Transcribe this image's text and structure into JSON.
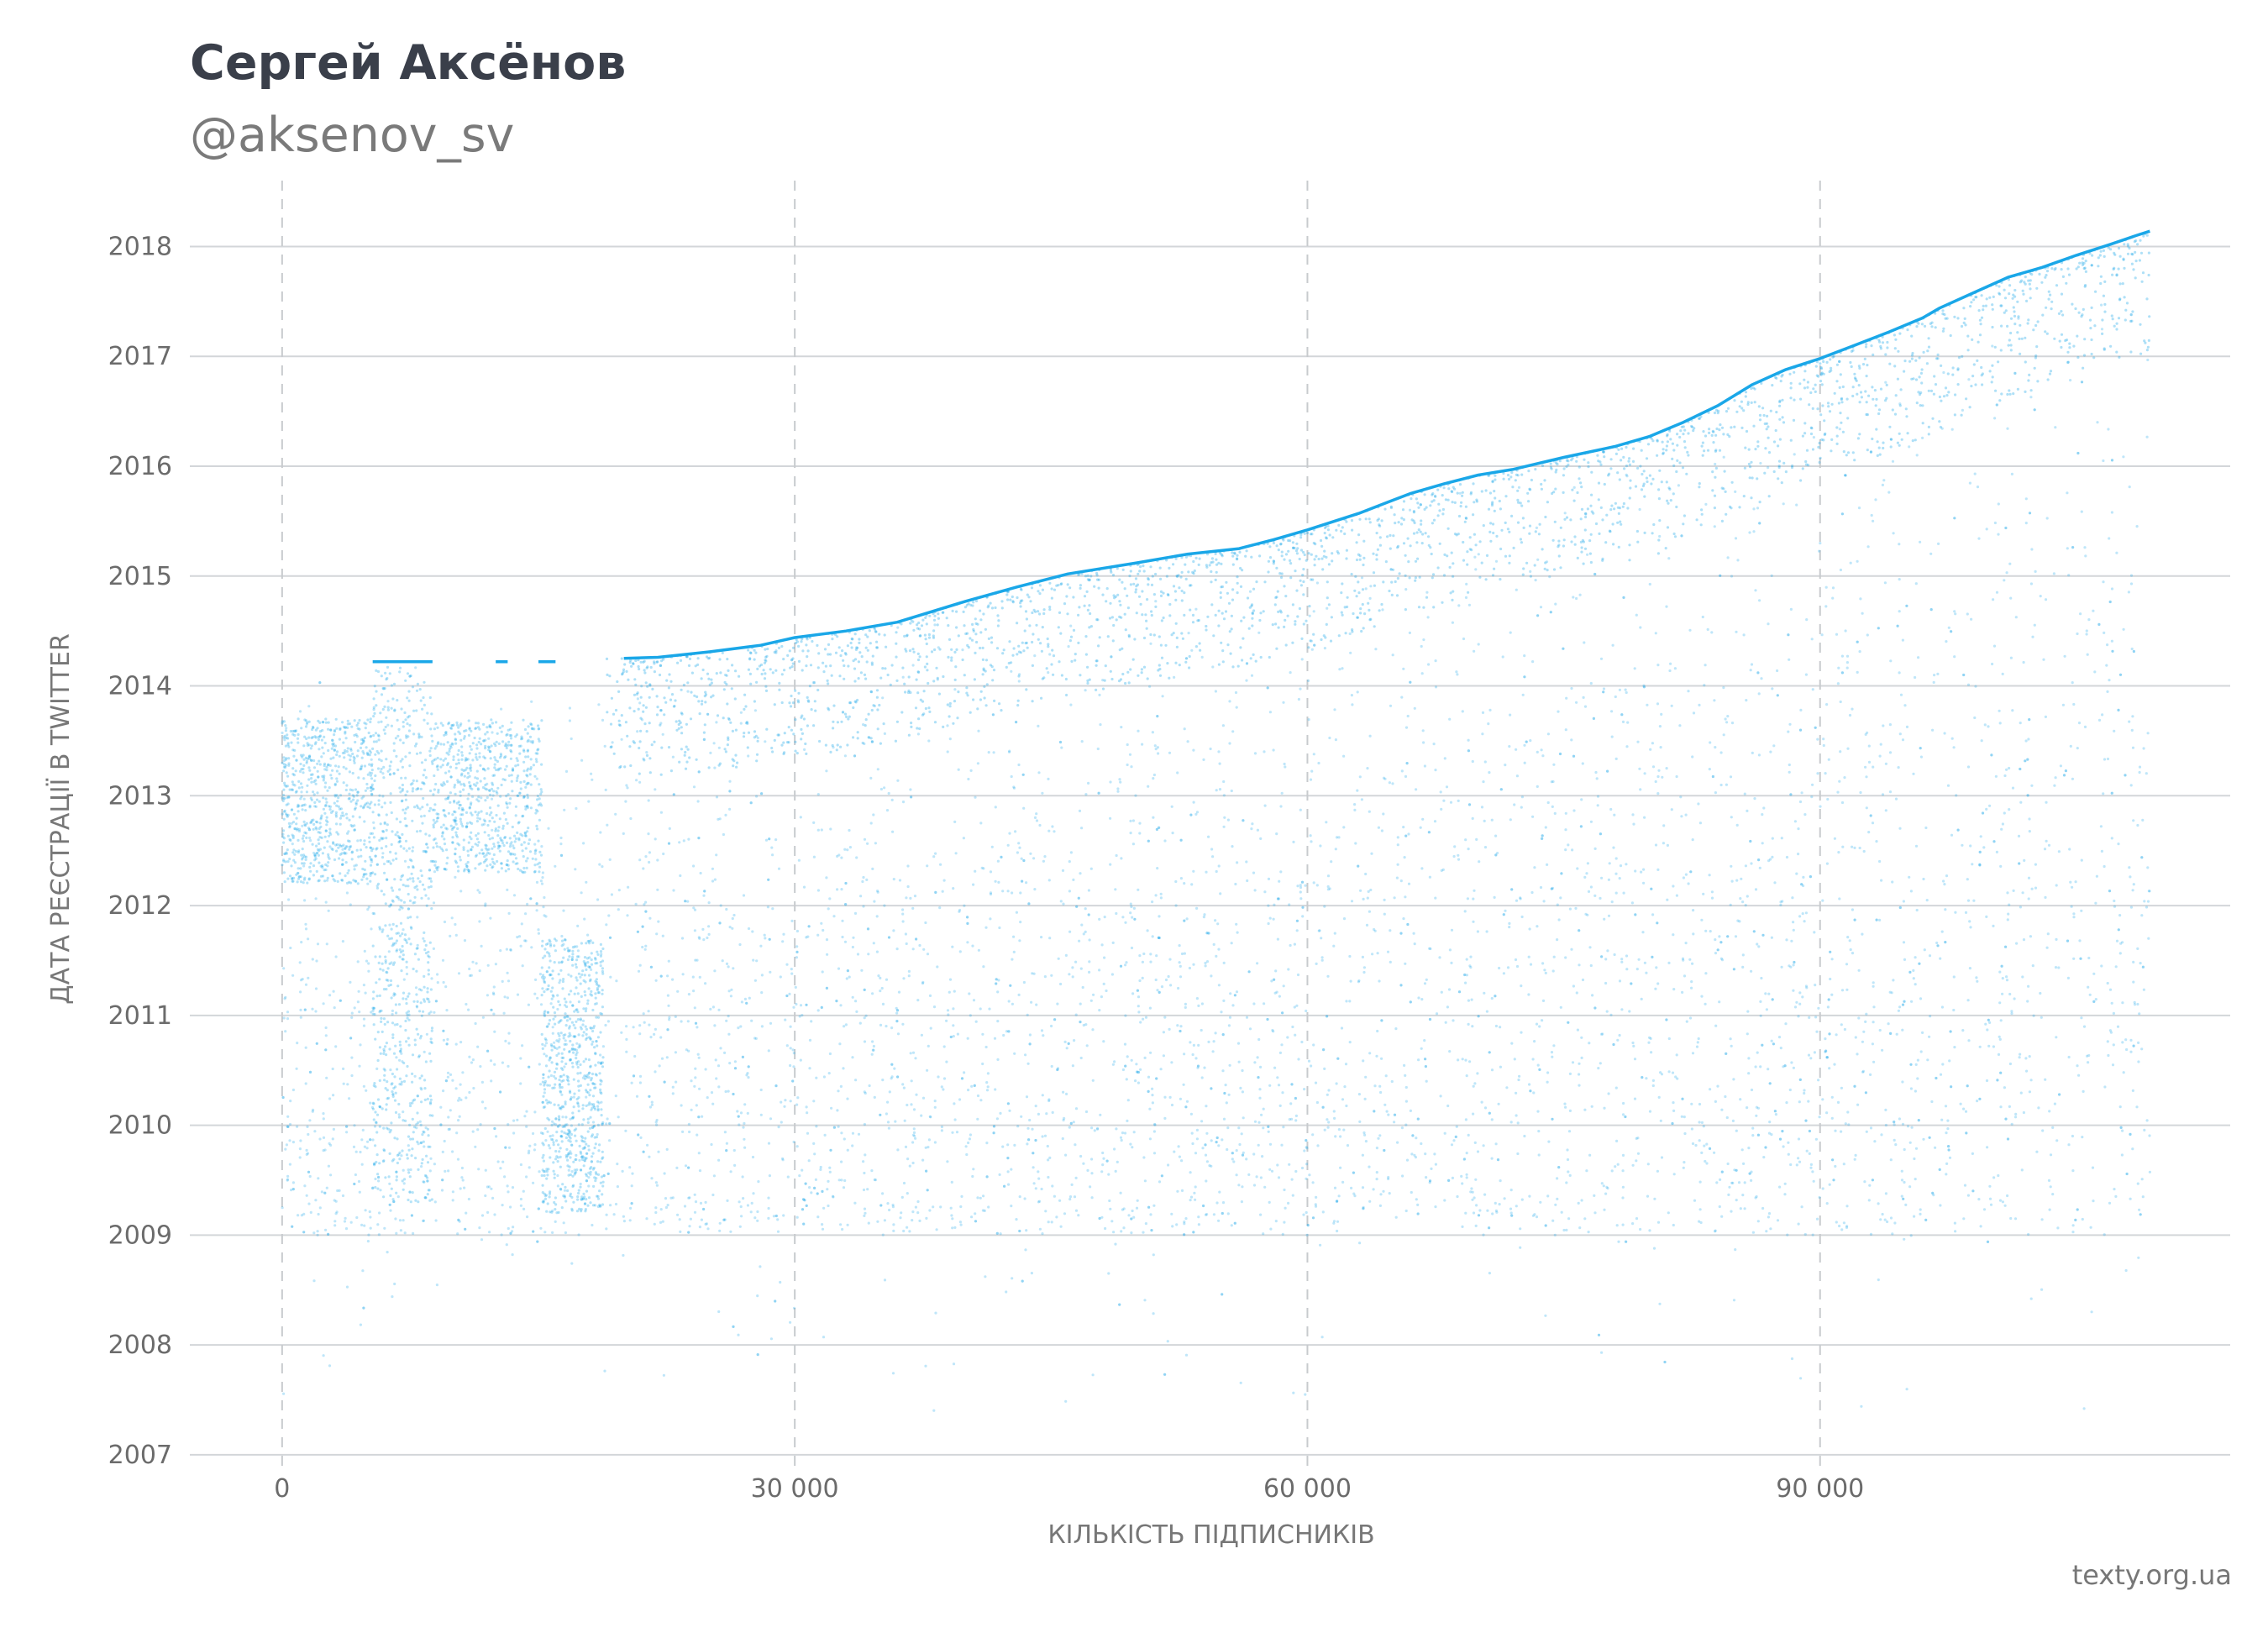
{
  "header": {
    "title": "Сергей Аксёнов",
    "handle": "@aksenov_sv"
  },
  "footer": {
    "credit": "texty.org.ua"
  },
  "colors": {
    "accent": "#1aa7e8",
    "points": "#1aa7e8",
    "grid": "#d3d6d9",
    "text": "#3a3f4a",
    "muted": "#7a7a7a"
  },
  "chart_data": {
    "type": "scatter",
    "xlabel": "КІЛЬКІСТЬ ПІДПИСНИКІВ",
    "ylabel": "ДАТА РЕЄСТРАЦІЇ В TWITTER",
    "xlim": [
      -5400,
      114000
    ],
    "ylim": [
      2006.9,
      2018.6
    ],
    "x_ticks": [
      0,
      30000,
      60000,
      90000
    ],
    "x_tick_labels": [
      "0",
      "30 000",
      "60 000",
      "90 000"
    ],
    "y_ticks": [
      2007,
      2008,
      2009,
      2010,
      2011,
      2012,
      2013,
      2014,
      2015,
      2016,
      2017,
      2018
    ],
    "y_tick_labels": [
      "2007",
      "2008",
      "2009",
      "2010",
      "2011",
      "2012",
      "2013",
      "2014",
      "2015",
      "2016",
      "2017",
      "2018"
    ],
    "grid": {
      "horizontal": "solid",
      "vertical": "dashed"
    },
    "total_followers": 109300,
    "envelope": {
      "name": "",
      "x": [
        0,
        20000,
        22000,
        25000,
        28000,
        30000,
        33000,
        36000,
        40000,
        43000,
        46000,
        50000,
        53000,
        56000,
        58000,
        60000,
        63000,
        66000,
        68000,
        70000,
        72000,
        75000,
        78000,
        80000,
        82000,
        84000,
        86000,
        88000,
        90000,
        92000,
        94000,
        96000,
        97000,
        99000,
        101000,
        103000,
        105000,
        107000,
        108500,
        109300
      ],
      "y": [
        2014.22,
        2014.25,
        2014.26,
        2014.31,
        2014.37,
        2014.44,
        2014.5,
        2014.58,
        2014.77,
        2014.9,
        2015.02,
        2015.12,
        2015.2,
        2015.25,
        2015.33,
        2015.42,
        2015.57,
        2015.75,
        2015.84,
        2015.92,
        2015.97,
        2016.08,
        2016.18,
        2016.27,
        2016.4,
        2016.55,
        2016.74,
        2016.88,
        2016.98,
        2017.1,
        2017.22,
        2017.35,
        2017.44,
        2017.58,
        2017.72,
        2017.81,
        2017.92,
        2018.02,
        2018.1,
        2018.14
      ]
    },
    "point_clusters": [
      {
        "x": [
          0,
          5300
        ],
        "y": [
          2012.2,
          2013.7
        ]
      },
      {
        "x": [
          5300,
          8800
        ],
        "y": [
          2009.3,
          2014.2
        ]
      },
      {
        "x": [
          8800,
          15200
        ],
        "y": [
          2012.3,
          2013.7
        ]
      },
      {
        "x": [
          15200,
          18800
        ],
        "y": [
          2009.2,
          2011.7
        ]
      }
    ]
  }
}
